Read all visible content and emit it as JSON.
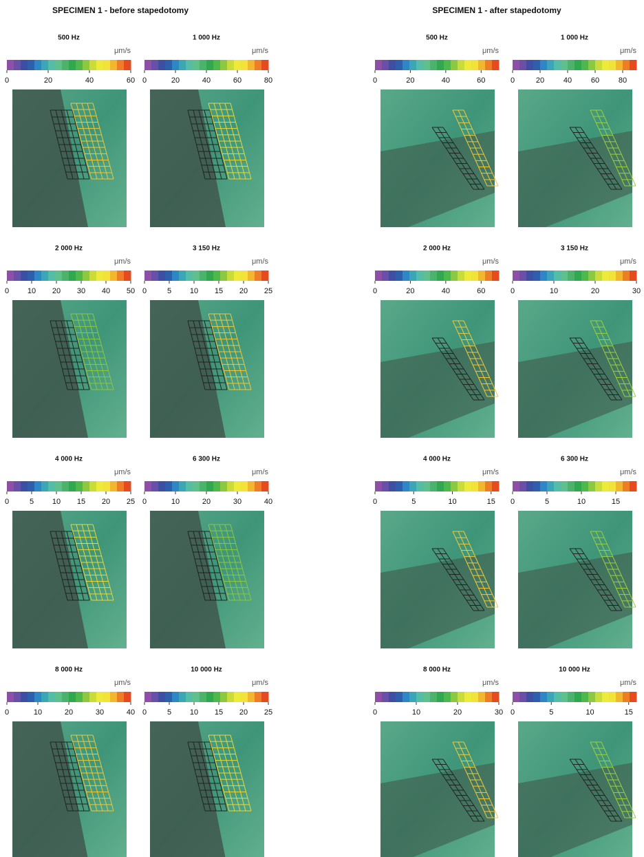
{
  "left": {
    "title": "SPECIMEN 1 - before stapedotomy",
    "panels": [
      {
        "freq": "500 Hz",
        "unit": "μm/s",
        "range": [
          0,
          60
        ],
        "ticks": [
          0,
          20,
          40,
          60
        ]
      },
      {
        "freq": "1 000 Hz",
        "unit": "μm/s",
        "range": [
          0,
          80
        ],
        "ticks": [
          0,
          20,
          40,
          60,
          80
        ]
      },
      {
        "freq": "2 000 Hz",
        "unit": "μm/s",
        "range": [
          0,
          50
        ],
        "ticks": [
          0,
          10,
          20,
          30,
          40,
          50
        ]
      },
      {
        "freq": "3 150 Hz",
        "unit": "μm/s",
        "range": [
          0,
          25
        ],
        "ticks": [
          0,
          5,
          10,
          15,
          20,
          25
        ]
      },
      {
        "freq": "4 000 Hz",
        "unit": "μm/s",
        "range": [
          0,
          25
        ],
        "ticks": [
          0,
          5,
          10,
          15,
          20,
          25
        ]
      },
      {
        "freq": "6 300 Hz",
        "unit": "μm/s",
        "range": [
          0,
          40
        ],
        "ticks": [
          0,
          10,
          20,
          30,
          40
        ]
      },
      {
        "freq": "8 000 Hz",
        "unit": "μm/s",
        "range": [
          0,
          40
        ],
        "ticks": [
          0,
          10,
          20,
          30,
          40
        ]
      },
      {
        "freq": "10 000 Hz",
        "unit": "μm/s",
        "range": [
          0,
          25
        ],
        "ticks": [
          0,
          5,
          10,
          15,
          20,
          25
        ]
      }
    ]
  },
  "right": {
    "title": "SPECIMEN 1 - after stapedotomy",
    "panels": [
      {
        "freq": "500 Hz",
        "unit": "μm/s",
        "range": [
          0,
          70
        ],
        "ticks": [
          0,
          20,
          40,
          60
        ]
      },
      {
        "freq": "1 000 Hz",
        "unit": "μm/s",
        "range": [
          0,
          90
        ],
        "ticks": [
          0,
          20,
          40,
          60,
          80
        ]
      },
      {
        "freq": "2 000 Hz",
        "unit": "μm/s",
        "range": [
          0,
          70
        ],
        "ticks": [
          0,
          20,
          40,
          60
        ]
      },
      {
        "freq": "3 150 Hz",
        "unit": "μm/s",
        "range": [
          0,
          30
        ],
        "ticks": [
          0,
          10,
          20,
          30
        ]
      },
      {
        "freq": "4 000 Hz",
        "unit": "μm/s",
        "range": [
          0,
          16
        ],
        "ticks": [
          0,
          5,
          10,
          15
        ]
      },
      {
        "freq": "6 300 Hz",
        "unit": "μm/s",
        "range": [
          0,
          18
        ],
        "ticks": [
          0,
          5,
          10,
          15
        ]
      },
      {
        "freq": "8 000 Hz",
        "unit": "μm/s",
        "range": [
          0,
          30
        ],
        "ticks": [
          0,
          10,
          20,
          30
        ]
      },
      {
        "freq": "10 000 Hz",
        "unit": "μm/s",
        "range": [
          0,
          16
        ],
        "ticks": [
          0,
          5,
          10,
          15
        ]
      }
    ]
  }
}
